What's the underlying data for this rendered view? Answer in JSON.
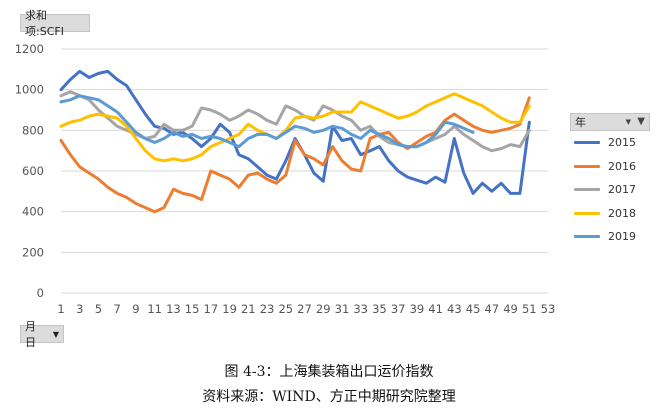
{
  "value_field_label": "求和项:SCFI",
  "axis_field_label": "月日",
  "legend_title": "年",
  "caption_title": "图 4-3：上海集装箱出口运价指数",
  "caption_source": "资料来源：WIND、方正中期研究院整理",
  "chart_data": {
    "type": "line",
    "title": "",
    "xlabel": "",
    "ylabel": "",
    "ylim": [
      0,
      1200
    ],
    "yticks": [
      0,
      200,
      400,
      600,
      800,
      1000,
      1200
    ],
    "xticks": [
      1,
      3,
      5,
      7,
      9,
      11,
      13,
      15,
      17,
      19,
      21,
      23,
      25,
      27,
      29,
      31,
      33,
      35,
      37,
      39,
      41,
      43,
      45,
      47,
      49,
      51,
      53
    ],
    "grid": "horizontal",
    "legend": "right",
    "series": [
      {
        "name": "2015",
        "color": "#4472c4",
        "values": [
          1000,
          1050,
          1090,
          1060,
          1080,
          1090,
          1050,
          1020,
          950,
          880,
          820,
          810,
          780,
          790,
          760,
          720,
          760,
          830,
          790,
          680,
          660,
          620,
          580,
          560,
          650,
          760,
          680,
          590,
          550,
          820,
          750,
          760,
          680,
          700,
          720,
          650,
          600,
          570,
          555,
          540,
          570,
          545,
          760,
          590,
          490,
          540,
          500,
          540,
          490,
          490,
          840
        ]
      },
      {
        "name": "2016",
        "color": "#ed7d31",
        "values": [
          750,
          680,
          620,
          590,
          560,
          520,
          490,
          470,
          440,
          420,
          400,
          420,
          510,
          490,
          480,
          460,
          600,
          580,
          560,
          520,
          580,
          590,
          560,
          540,
          580,
          750,
          680,
          660,
          630,
          720,
          650,
          610,
          600,
          760,
          780,
          790,
          740,
          710,
          740,
          770,
          790,
          850,
          880,
          850,
          820,
          800,
          790,
          800,
          810,
          830,
          960
        ]
      },
      {
        "name": "2017",
        "color": "#a5a5a5",
        "values": [
          970,
          990,
          970,
          950,
          900,
          860,
          820,
          800,
          780,
          760,
          770,
          830,
          800,
          800,
          820,
          910,
          900,
          880,
          850,
          870,
          900,
          880,
          850,
          830,
          920,
          900,
          870,
          850,
          920,
          900,
          870,
          850,
          800,
          820,
          770,
          740,
          730,
          720,
          720,
          740,
          760,
          780,
          820,
          780,
          750,
          720,
          700,
          710,
          730,
          720,
          800
        ]
      },
      {
        "name": "2018",
        "color": "#ffc000",
        "values": [
          820,
          840,
          850,
          870,
          880,
          870,
          860,
          820,
          760,
          700,
          660,
          650,
          660,
          650,
          660,
          680,
          720,
          740,
          760,
          780,
          830,
          800,
          780,
          760,
          800,
          860,
          870,
          860,
          870,
          890,
          890,
          890,
          940,
          920,
          900,
          880,
          860,
          870,
          890,
          920,
          940,
          960,
          980,
          960,
          940,
          920,
          890,
          860,
          840,
          840,
          920
        ]
      },
      {
        "name": "2019",
        "color": "#5b9bd5",
        "values": [
          940,
          950,
          970,
          960,
          950,
          920,
          890,
          840,
          790,
          760,
          740,
          760,
          790,
          770,
          780,
          760,
          770,
          760,
          740,
          720,
          760,
          780,
          780,
          760,
          790,
          820,
          810,
          790,
          800,
          820,
          810,
          780,
          760,
          800,
          780,
          760,
          730,
          720,
          720,
          740,
          780,
          840,
          830,
          810,
          790
        ]
      }
    ]
  }
}
